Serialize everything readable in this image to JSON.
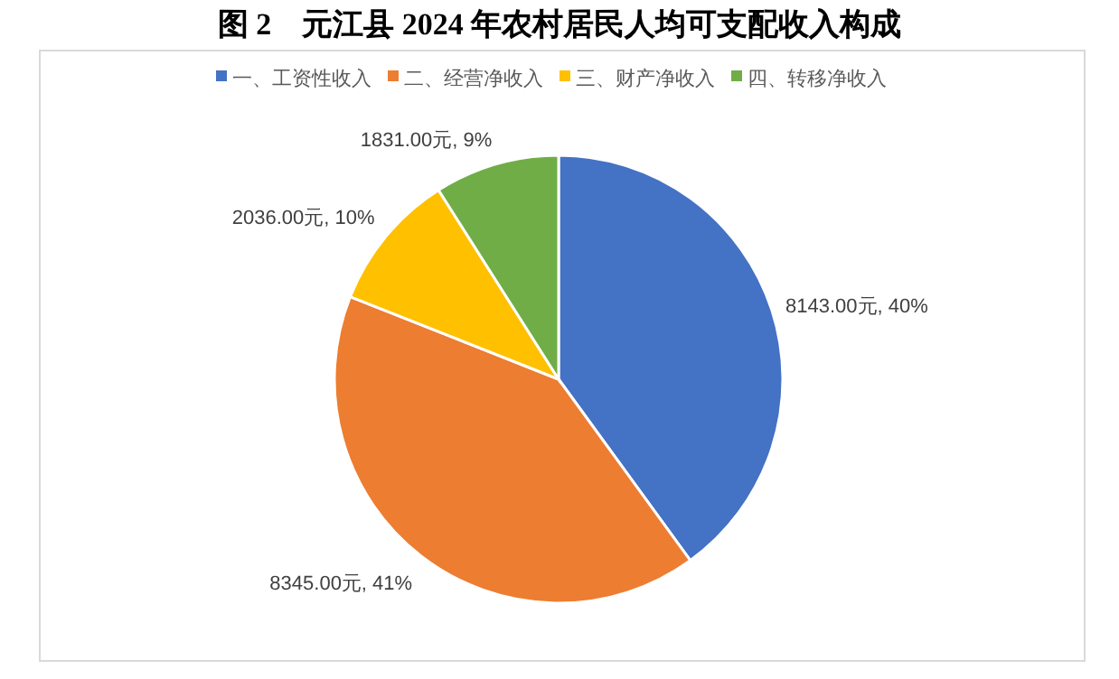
{
  "chart_data": {
    "type": "pie",
    "title": "图 2　元江县 2024 年农村居民人均可支配收入构成",
    "categories": [
      "一、工资性收入",
      "二、经营净收入",
      "三、财产净收入",
      "四、转移净收入"
    ],
    "values": [
      8143,
      8345,
      2036,
      1831
    ],
    "colors": [
      "#4472c4",
      "#ed7d31",
      "#ffc000",
      "#70ad47"
    ],
    "value_labels": [
      "8143.00元, 40%",
      "8345.00元, 41%",
      "2036.00元, 10%",
      "1831.00元, 9%"
    ],
    "legend": "top"
  }
}
